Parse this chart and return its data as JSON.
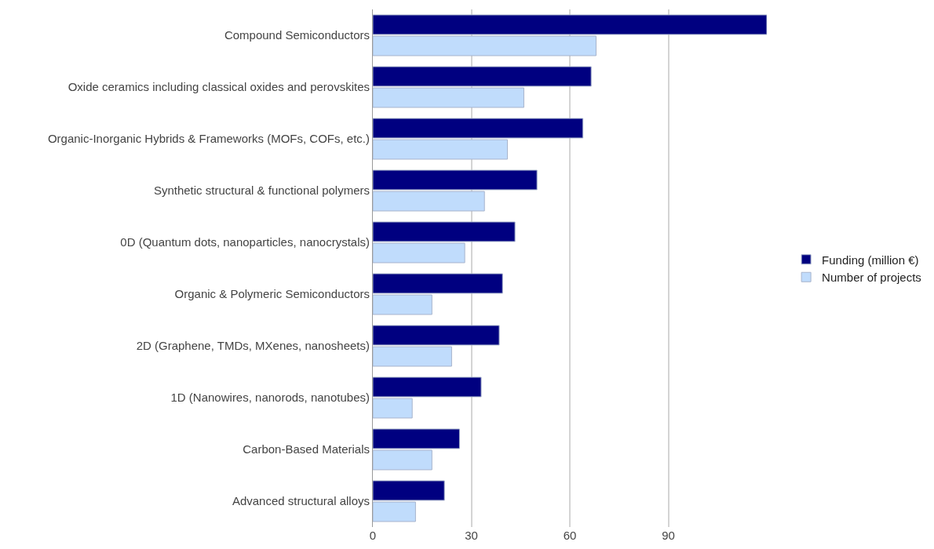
{
  "chart_data": {
    "type": "bar",
    "orientation": "horizontal",
    "categories": [
      "Compound Semiconductors",
      "Oxide ceramics including classical oxides and perovskites",
      "Organic-Inorganic Hybrids & Frameworks (MOFs, COFs, etc.)",
      "Synthetic structural & functional polymers",
      "0D (Quantum dots, nanoparticles, nanocrystals)",
      "Organic & Polymeric Semiconductors",
      "2D (Graphene, TMDs, MXenes, nanosheets)",
      "1D (Nanowires, nanorods, nanotubes)",
      "Carbon-Based Materials",
      "Advanced structural alloys"
    ],
    "series": [
      {
        "name": "Funding (million €)",
        "color": "#000080",
        "values": [
          120,
          66.5,
          64,
          50,
          43.3,
          39.5,
          38.5,
          33,
          26.4,
          21.8
        ]
      },
      {
        "name": "Number of projects",
        "color": "#c0dcfc",
        "values": [
          68,
          46,
          41,
          34,
          28,
          18,
          24,
          12,
          18,
          13
        ]
      }
    ],
    "xlim": [
      0,
      120
    ],
    "xticks": [
      0,
      30,
      60,
      90
    ],
    "grid": "x",
    "legend": "right"
  }
}
